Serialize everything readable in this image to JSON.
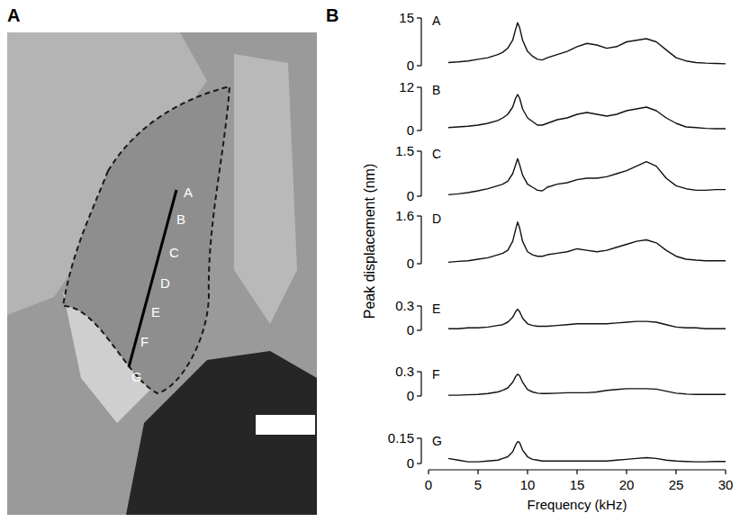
{
  "panels": [
    {
      "label": "A",
      "point_labels": [
        "A",
        "B",
        "C",
        "D",
        "E",
        "F",
        "G"
      ]
    },
    {
      "label": "B",
      "ylabel": "Peak displacement (nm)",
      "xlabel": "Frequency (kHz)"
    }
  ],
  "chart_data": [
    {
      "type": "line",
      "title": "A",
      "xlim": [
        0,
        30
      ],
      "ylim": [
        0,
        15
      ],
      "yticks": [
        0,
        15
      ],
      "tick_labels": "y",
      "color": "#111111",
      "x": [
        2,
        3,
        4,
        5,
        6,
        7,
        7.5,
        8,
        8.5,
        8.8,
        9,
        9.2,
        9.5,
        10,
        10.5,
        11,
        11.5,
        12,
        13,
        14,
        15,
        16,
        17,
        18,
        19,
        20,
        21,
        22,
        23,
        24,
        25,
        26,
        27,
        28,
        29,
        30
      ],
      "values": [
        1,
        1.2,
        1.5,
        2,
        2.5,
        3.5,
        4.2,
        5.5,
        8,
        11.5,
        13.5,
        12,
        8,
        4.5,
        3,
        2,
        1.8,
        2.5,
        3.5,
        4.5,
        6,
        7,
        6.5,
        5.5,
        6,
        7.5,
        8,
        8.5,
        7.5,
        5,
        2.5,
        1.5,
        1,
        0.8,
        0.7,
        0.6
      ]
    },
    {
      "type": "line",
      "title": "B",
      "xlim": [
        0,
        30
      ],
      "ylim": [
        0,
        12
      ],
      "yticks": [
        0,
        12
      ],
      "tick_labels": "y",
      "color": "#111111",
      "x": [
        2,
        3,
        4,
        5,
        6,
        7,
        7.5,
        8,
        8.5,
        8.8,
        9,
        9.2,
        9.5,
        10,
        10.5,
        11,
        11.5,
        12,
        13,
        14,
        15,
        16,
        17,
        18,
        19,
        20,
        21,
        22,
        23,
        24,
        25,
        26,
        27,
        28,
        29,
        30
      ],
      "values": [
        0.8,
        1,
        1.2,
        1.5,
        2,
        2.8,
        3.5,
        4.5,
        6.5,
        9,
        10,
        9,
        6,
        3.5,
        2.5,
        1.5,
        1.5,
        2,
        3,
        3.5,
        4.5,
        5,
        4.5,
        4,
        4.5,
        5.5,
        6,
        6.5,
        5.5,
        3.5,
        2,
        1,
        0.8,
        0.6,
        0.5,
        0.5
      ]
    },
    {
      "type": "line",
      "title": "C",
      "xlim": [
        0,
        30
      ],
      "ylim": [
        0,
        1.5
      ],
      "yticks": [
        0,
        1.5
      ],
      "tick_labels": "y",
      "color": "#111111",
      "x": [
        2,
        3,
        4,
        5,
        6,
        7,
        7.5,
        8,
        8.5,
        8.8,
        9,
        9.2,
        9.5,
        10,
        10.5,
        11,
        11.5,
        12,
        13,
        14,
        15,
        16,
        17,
        18,
        19,
        20,
        21,
        22,
        23,
        24,
        25,
        26,
        27,
        28,
        29,
        30
      ],
      "values": [
        0.05,
        0.08,
        0.12,
        0.18,
        0.25,
        0.35,
        0.4,
        0.5,
        0.75,
        1.05,
        1.25,
        1.05,
        0.7,
        0.4,
        0.3,
        0.2,
        0.18,
        0.3,
        0.4,
        0.45,
        0.55,
        0.6,
        0.6,
        0.65,
        0.75,
        0.85,
        1.0,
        1.15,
        1.0,
        0.6,
        0.35,
        0.25,
        0.2,
        0.2,
        0.22,
        0.22
      ]
    },
    {
      "type": "line",
      "title": "D",
      "xlim": [
        0,
        30
      ],
      "ylim": [
        0,
        1.6
      ],
      "yticks": [
        0,
        1.6
      ],
      "tick_labels": "y",
      "color": "#111111",
      "x": [
        2,
        3,
        4,
        5,
        6,
        7,
        7.5,
        8,
        8.5,
        8.8,
        9,
        9.2,
        9.5,
        10,
        10.5,
        11,
        11.5,
        12,
        13,
        14,
        15,
        16,
        17,
        18,
        19,
        20,
        21,
        22,
        23,
        24,
        25,
        26,
        27,
        28,
        29,
        30
      ],
      "values": [
        0.05,
        0.08,
        0.1,
        0.15,
        0.2,
        0.3,
        0.35,
        0.45,
        0.75,
        1.15,
        1.4,
        1.2,
        0.75,
        0.4,
        0.3,
        0.25,
        0.25,
        0.3,
        0.35,
        0.4,
        0.5,
        0.45,
        0.4,
        0.45,
        0.55,
        0.65,
        0.75,
        0.8,
        0.7,
        0.45,
        0.25,
        0.15,
        0.12,
        0.1,
        0.1,
        0.1
      ]
    },
    {
      "type": "line",
      "title": "E",
      "xlim": [
        0,
        30
      ],
      "ylim": [
        0,
        0.3
      ],
      "yticks": [
        0,
        0.3
      ],
      "tick_labels": "y",
      "color": "#111111",
      "x": [
        2,
        3,
        4,
        5,
        6,
        7,
        7.5,
        8,
        8.5,
        8.8,
        9,
        9.2,
        9.5,
        10,
        10.5,
        11,
        11.5,
        12,
        13,
        14,
        15,
        16,
        17,
        18,
        19,
        20,
        21,
        22,
        23,
        24,
        25,
        26,
        27,
        28,
        29,
        30
      ],
      "values": [
        0.02,
        0.02,
        0.03,
        0.03,
        0.04,
        0.06,
        0.07,
        0.1,
        0.16,
        0.23,
        0.26,
        0.23,
        0.15,
        0.08,
        0.06,
        0.05,
        0.05,
        0.05,
        0.06,
        0.07,
        0.08,
        0.08,
        0.08,
        0.08,
        0.09,
        0.1,
        0.11,
        0.11,
        0.1,
        0.07,
        0.04,
        0.03,
        0.03,
        0.02,
        0.02,
        0.02
      ]
    },
    {
      "type": "line",
      "title": "F",
      "xlim": [
        0,
        30
      ],
      "ylim": [
        0,
        0.3
      ],
      "yticks": [
        0,
        0.3
      ],
      "tick_labels": "y",
      "color": "#111111",
      "x": [
        2,
        3,
        4,
        5,
        6,
        7,
        7.5,
        8,
        8.5,
        8.8,
        9,
        9.2,
        9.5,
        10,
        10.5,
        11,
        11.5,
        12,
        13,
        14,
        15,
        16,
        17,
        18,
        19,
        20,
        21,
        22,
        23,
        24,
        25,
        26,
        27,
        28,
        29,
        30
      ],
      "values": [
        0.01,
        0.01,
        0.015,
        0.02,
        0.03,
        0.05,
        0.07,
        0.1,
        0.17,
        0.24,
        0.27,
        0.25,
        0.17,
        0.08,
        0.05,
        0.035,
        0.03,
        0.03,
        0.035,
        0.04,
        0.04,
        0.04,
        0.05,
        0.07,
        0.08,
        0.09,
        0.09,
        0.09,
        0.085,
        0.06,
        0.035,
        0.025,
        0.02,
        0.02,
        0.02,
        0.02
      ]
    },
    {
      "type": "line",
      "title": "G",
      "xlim": [
        0,
        30
      ],
      "ylim": [
        0,
        0.15
      ],
      "yticks": [
        0,
        0.15
      ],
      "xticks": [
        0,
        5,
        10,
        15,
        20,
        25,
        30
      ],
      "color": "#111111",
      "x": [
        2,
        3,
        4,
        5,
        6,
        7,
        7.5,
        8,
        8.5,
        8.8,
        9,
        9.2,
        9.5,
        10,
        10.5,
        11,
        11.5,
        12,
        13,
        14,
        15,
        16,
        17,
        18,
        19,
        20,
        21,
        22,
        23,
        24,
        25,
        26,
        27,
        28,
        29,
        30
      ],
      "values": [
        0.03,
        0.02,
        0.01,
        0.01,
        0.015,
        0.02,
        0.03,
        0.04,
        0.07,
        0.11,
        0.13,
        0.125,
        0.08,
        0.04,
        0.025,
        0.02,
        0.015,
        0.015,
        0.015,
        0.015,
        0.015,
        0.015,
        0.015,
        0.015,
        0.02,
        0.025,
        0.03,
        0.035,
        0.03,
        0.02,
        0.015,
        0.012,
        0.01,
        0.01,
        0.012,
        0.012
      ]
    }
  ]
}
